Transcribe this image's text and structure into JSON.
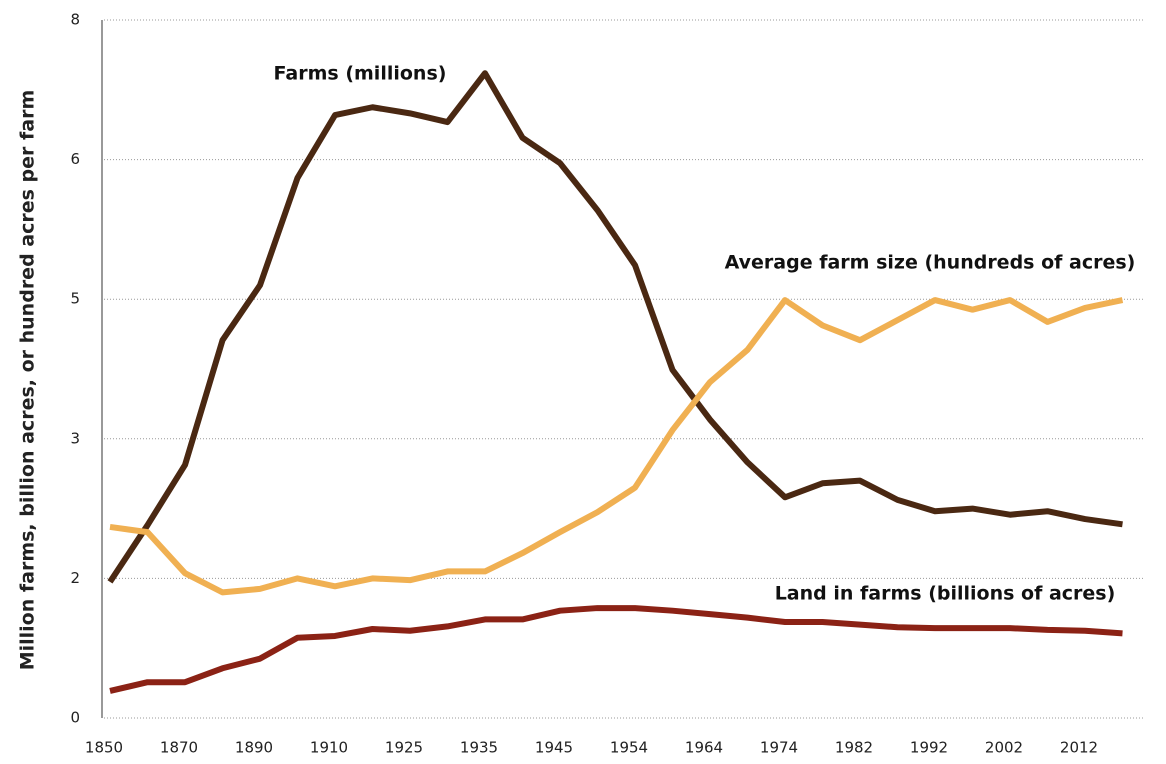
{
  "chart_data": {
    "type": "line",
    "y_label": "Million farms, billion acres, or hundred acres per farm",
    "categories": [
      "1850",
      null,
      "1870",
      null,
      "1890",
      null,
      "1910",
      null,
      "1925",
      null,
      "1935",
      null,
      "1945",
      null,
      "1954",
      null,
      "1964",
      null,
      "1974",
      null,
      "1982",
      null,
      "1992",
      null,
      "2002",
      null,
      "2012",
      null
    ],
    "ylim": [
      0,
      8
    ],
    "yticks": [
      0,
      {
        "value": 1.6,
        "label": "2"
      },
      {
        "value": 3.2,
        "label": "3"
      },
      {
        "value": 4.8,
        "label": "5"
      },
      {
        "value": 6.4,
        "label": "6"
      },
      8
    ],
    "grid": true,
    "series": [
      {
        "name": "Farms (millions)",
        "color": "#4a2812",
        "values": [
          1.56,
          2.21,
          2.9,
          4.33,
          4.96,
          6.19,
          6.91,
          7.0,
          6.93,
          6.83,
          7.39,
          6.65,
          6.36,
          5.82,
          5.19,
          3.99,
          3.42,
          2.93,
          2.53,
          2.69,
          2.72,
          2.5,
          2.37,
          2.4,
          2.33,
          2.37,
          2.28,
          2.22
        ]
      },
      {
        "name": "Average farm size (hundreds of acres)",
        "color": "#f0b052",
        "values": [
          2.19,
          2.13,
          1.66,
          1.44,
          1.48,
          1.6,
          1.51,
          1.6,
          1.58,
          1.68,
          1.68,
          1.89,
          2.13,
          2.36,
          2.64,
          3.3,
          3.85,
          4.22,
          4.79,
          4.5,
          4.33,
          4.56,
          4.79,
          4.68,
          4.79,
          4.54,
          4.7,
          4.79
        ]
      },
      {
        "name": "Land in farms (billions of acres)",
        "color": "#8b2215",
        "values": [
          0.31,
          0.41,
          0.41,
          0.57,
          0.68,
          0.92,
          0.94,
          1.02,
          1.0,
          1.05,
          1.13,
          1.13,
          1.23,
          1.26,
          1.26,
          1.23,
          1.19,
          1.15,
          1.1,
          1.1,
          1.07,
          1.04,
          1.03,
          1.03,
          1.03,
          1.01,
          1.0,
          0.97
        ]
      }
    ]
  }
}
